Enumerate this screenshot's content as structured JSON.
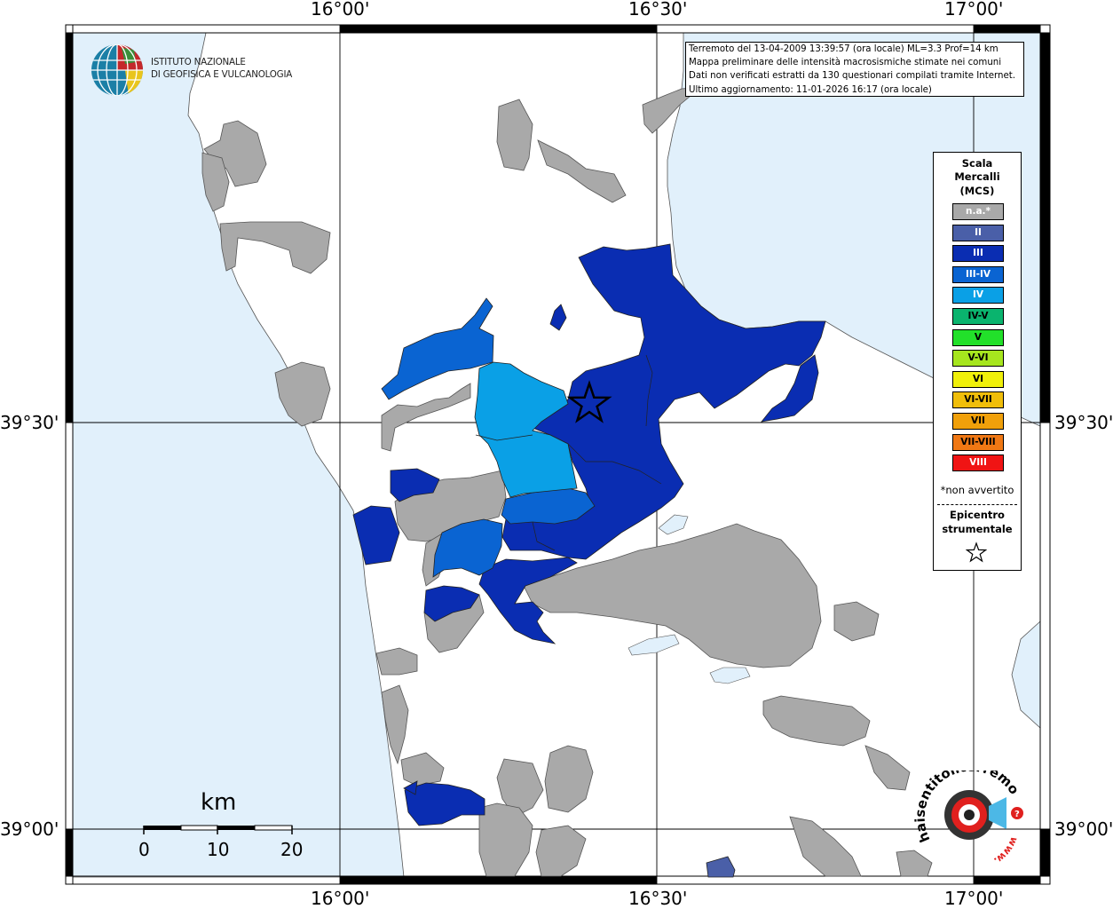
{
  "info_box": {
    "lines": [
      "Terremoto del 13-04-2009 13:39:57 (ora locale) ML=3.3 Prof=14 km",
      "Mappa preliminare delle intensità macrosismiche stimate nei comuni",
      "Dati non verificati estratti da 130 questionari compilati tramite Internet.",
      "Ultimo aggiornamento: 11-01-2026 16:17 (ora locale)"
    ]
  },
  "coordinates": {
    "lon_top": [
      "16°00'",
      "16°30'",
      "17°00'"
    ],
    "lon_bottom": [
      "16°00'",
      "16°30'",
      "17°00'"
    ],
    "lat_left": [
      "39°30'",
      "39°00'"
    ],
    "lat_right": [
      "39°30'",
      "39°00'"
    ]
  },
  "legend": {
    "title_lines": [
      "Scala",
      "Mercalli",
      "(MCS)"
    ],
    "items": [
      {
        "label": "n.a.*",
        "color": "#a9a9a9"
      },
      {
        "label": "II",
        "color": "#4a5fa8"
      },
      {
        "label": "III",
        "color": "#0a2db2"
      },
      {
        "label": "III-IV",
        "color": "#0a64d2"
      },
      {
        "label": "IV",
        "color": "#0aa0e6"
      },
      {
        "label": "IV-V",
        "color": "#0ab46e"
      },
      {
        "label": "V",
        "color": "#22e02a"
      },
      {
        "label": "V-VI",
        "color": "#a6e61e"
      },
      {
        "label": "VI",
        "color": "#f0f00a"
      },
      {
        "label": "VI-VII",
        "color": "#f0be0a"
      },
      {
        "label": "VII",
        "color": "#f0a00a"
      },
      {
        "label": "VII-VIII",
        "color": "#f07814"
      },
      {
        "label": "VIII",
        "color": "#f01414"
      }
    ],
    "note": "*non avvertito",
    "epicenter_lines": [
      "Epicentro",
      "strumentale"
    ]
  },
  "institute": {
    "lines": [
      "ISTITUTO NAZIONALE",
      "DI GEOFISICA E VULCANOLOGIA"
    ]
  },
  "scale_bar": {
    "unit": "km",
    "ticks": [
      "0",
      "10",
      "20"
    ]
  },
  "website": {
    "text": "haisentitoilterremoto.it",
    "text2": "www."
  },
  "colors": {
    "sea": "#e1f0fb",
    "land": "#ffffff",
    "na": "#a9a9a9",
    "ii": "#4a5fa8",
    "iii": "#0a2db2",
    "iii_iv": "#0a64d2",
    "iv": "#0aa0e6"
  }
}
